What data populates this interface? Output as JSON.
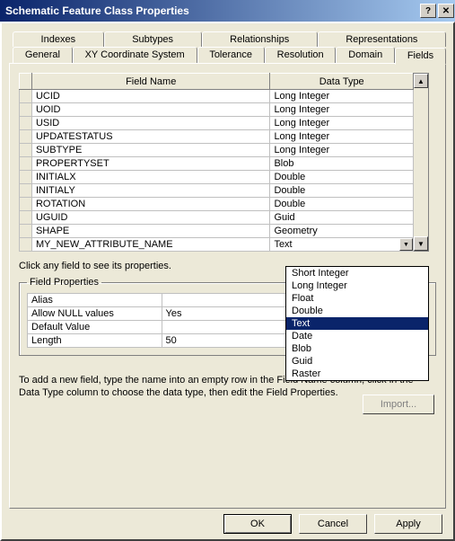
{
  "title": "Schematic Feature Class Properties",
  "tabs_row1": [
    "Indexes",
    "Subtypes",
    "Relationships",
    "Representations"
  ],
  "tabs_row2": [
    "General",
    "XY Coordinate System",
    "Tolerance",
    "Resolution",
    "Domain",
    "Fields"
  ],
  "active_tab": "Fields",
  "grid": {
    "headers": {
      "name": "Field Name",
      "type": "Data Type"
    },
    "rows": [
      {
        "name": "UCID",
        "type": "Long Integer"
      },
      {
        "name": "UOID",
        "type": "Long Integer"
      },
      {
        "name": "USID",
        "type": "Long Integer"
      },
      {
        "name": "UPDATESTATUS",
        "type": "Long Integer"
      },
      {
        "name": "SUBTYPE",
        "type": "Long Integer"
      },
      {
        "name": "PROPERTYSET",
        "type": "Blob"
      },
      {
        "name": "INITIALX",
        "type": "Double"
      },
      {
        "name": "INITIALY",
        "type": "Double"
      },
      {
        "name": "ROTATION",
        "type": "Double"
      },
      {
        "name": "UGUID",
        "type": "Guid"
      },
      {
        "name": "SHAPE",
        "type": "Geometry"
      },
      {
        "name": "MY_NEW_ATTRIBUTE_NAME",
        "type": "Text",
        "dropdown": true
      }
    ]
  },
  "dropdown_options": [
    "Short Integer",
    "Long Integer",
    "Float",
    "Double",
    "Text",
    "Date",
    "Blob",
    "Guid",
    "Raster"
  ],
  "dropdown_selected": "Text",
  "hint_text": "Click any field to see its properties.",
  "fieldset_label": "Field Properties",
  "field_props": [
    {
      "k": "Alias",
      "v": ""
    },
    {
      "k": "Allow NULL values",
      "v": "Yes"
    },
    {
      "k": "Default Value",
      "v": ""
    },
    {
      "k": "Length",
      "v": "50"
    }
  ],
  "import_label": "Import...",
  "help_text": "To add a new field, type the name into an empty row in the Field Name column, click in the Data Type column to choose the data type, then edit the Field Properties.",
  "buttons": {
    "ok": "OK",
    "cancel": "Cancel",
    "apply": "Apply"
  },
  "colors": {
    "titlebar_start": "#0a246a",
    "titlebar_end": "#a6caf0",
    "face": "#ece9d8",
    "highlight": "#0a246a",
    "highlight_text": "#ffffff"
  }
}
